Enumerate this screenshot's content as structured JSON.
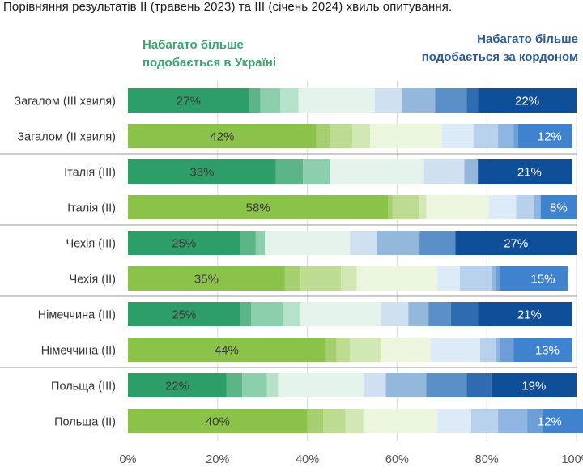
{
  "title": "Порівняння  результатів II (травень 2023) та III (січень 2024) хвиль опитування.",
  "legend": {
    "left_line1": "Набагато більше",
    "left_line2": "подобається в Україні",
    "right_line1": "Набагато більше",
    "right_line2": "подобається за кордоном"
  },
  "chart_data": {
    "type": "bar",
    "orientation": "horizontal",
    "stacked": true,
    "title": "Порівняння  результатів II (травень 2023) та III (січень 2024) хвиль опитування.",
    "xlabel": "",
    "ylabel": "",
    "xlim": [
      0,
      100
    ],
    "x_ticks": [
      "0%",
      "20%",
      "40%",
      "60%",
      "80%",
      "100%"
    ],
    "grid": true,
    "categories": [
      "Загалом (III хвиля)",
      "Загалом (II хвиля)",
      "Італія (III)",
      "Італія (II)",
      "Чехія (III)",
      "Чехія (II)",
      "Німеччина (III)",
      "Німеччина (II)",
      "Польща (III)",
      "Польща (II)"
    ],
    "wave": [
      "III",
      "II",
      "III",
      "II",
      "III",
      "II",
      "III",
      "II",
      "III",
      "II"
    ],
    "segments": [
      [
        27,
        2.5,
        4.5,
        4,
        17,
        6,
        7.5,
        7,
        2.5,
        22
      ],
      [
        42,
        3,
        5,
        4,
        16,
        7,
        5.5,
        3.5,
        1,
        12
      ],
      [
        33,
        6,
        6,
        0,
        21,
        9,
        3,
        0,
        0,
        21
      ],
      [
        58,
        1,
        6,
        1.5,
        14,
        6,
        4,
        1.5,
        0,
        8
      ],
      [
        25,
        3.5,
        2,
        0,
        19,
        6,
        9.5,
        8,
        0,
        27
      ],
      [
        35,
        3.5,
        9,
        3.5,
        18,
        5,
        7,
        1,
        1,
        15
      ],
      [
        25,
        2.5,
        7,
        4,
        18,
        6,
        4.5,
        5,
        6,
        21
      ],
      [
        44,
        2.5,
        3,
        7,
        11,
        11,
        3.5,
        1,
        3,
        13
      ],
      [
        22,
        3.5,
        5.5,
        2.5,
        19,
        5,
        9,
        9,
        5.5,
        19
      ],
      [
        40,
        3.5,
        5,
        4,
        16.5,
        7.5,
        6,
        6.5,
        3.5,
        12
      ]
    ],
    "labels": [
      [
        "27%",
        "22%"
      ],
      [
        "42%",
        "12%"
      ],
      [
        "33%",
        "21%"
      ],
      [
        "58%",
        "8%"
      ],
      [
        "25%",
        "27%"
      ],
      [
        "35%",
        "15%"
      ],
      [
        "25%",
        "21%"
      ],
      [
        "44%",
        "13%"
      ],
      [
        "22%",
        "19%"
      ],
      [
        "40%",
        "12%"
      ]
    ],
    "colors": {
      "III": [
        "#2e9e68",
        "#5cb586",
        "#8ccfac",
        "#b6e2ca",
        "#e4f4ec",
        "#cfe0f0",
        "#93b8dc",
        "#5b8fc7",
        "#2f6bb0",
        "#0f4f9a"
      ],
      "II": [
        "#8bc34a",
        "#a6d06f",
        "#bddc92",
        "#d1e7b4",
        "#ecf5dd",
        "#ddebf8",
        "#b8d2ee",
        "#8fb6e2",
        "#6d9ed8",
        "#3f83ce"
      ],
      "label_left": "#3b3b3b",
      "label_right": "#ffffff",
      "separator": "#9a9a9a",
      "grid": "#d9d9d9"
    }
  }
}
